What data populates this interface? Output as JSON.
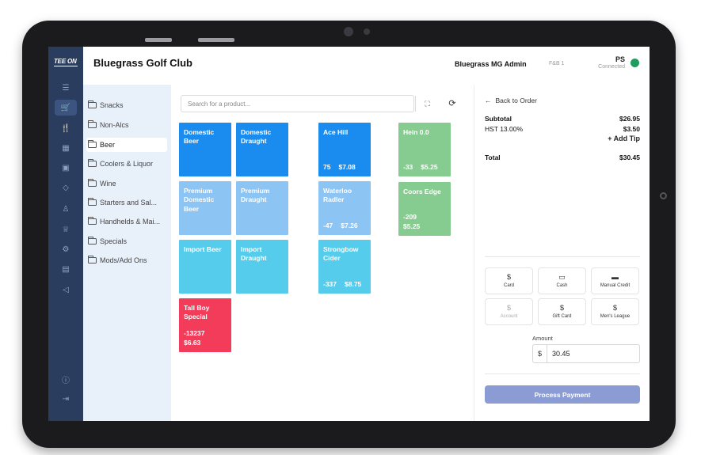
{
  "header": {
    "club_name": "Bluegrass Golf Club",
    "admin_name": "Bluegrass MG Admin",
    "station": "F&B 1",
    "user_initials": "PS",
    "connection_status": "Connected",
    "status_color": "#1f9c60"
  },
  "rail": {
    "logo": "TEE ON",
    "icons": [
      "menu-icon",
      "cart-icon",
      "restaurant-icon",
      "calendar-icon",
      "inventory-icon",
      "tag-icon",
      "user-icon",
      "trophy-icon",
      "settings-icon",
      "report-icon",
      "megaphone-icon",
      "info-icon",
      "logout-icon"
    ],
    "active": "cart-icon"
  },
  "categories": [
    {
      "label": "Snacks"
    },
    {
      "label": "Non-Alcs"
    },
    {
      "label": "Beer",
      "active": true
    },
    {
      "label": "Coolers & Liquor"
    },
    {
      "label": "Wine"
    },
    {
      "label": "Starters and Sal..."
    },
    {
      "label": "Handhelds & Mai..."
    },
    {
      "label": "Specials"
    },
    {
      "label": "Mods/Add Ons"
    }
  ],
  "search": {
    "placeholder": "Search for a product..."
  },
  "products": [
    {
      "name": "Domestic Beer",
      "qty": "",
      "price": "",
      "color": "#1a8cf0"
    },
    {
      "name": "Domestic Draught",
      "qty": "",
      "price": "",
      "color": "#1a8cf0"
    },
    {
      "name": "Premium Domestic Beer",
      "qty": "",
      "price": "",
      "color": "#8cc4f4"
    },
    {
      "name": "Premium Draught",
      "qty": "",
      "price": "",
      "color": "#8cc4f4"
    },
    {
      "name": "Import Beer",
      "qty": "",
      "price": "",
      "color": "#56ccec"
    },
    {
      "name": "Import Draught",
      "qty": "",
      "price": "",
      "color": "#56ccec"
    },
    {
      "name": "Tall Boy Special",
      "qty": "-13237",
      "price": "$6.63",
      "color": "#f23c5a"
    },
    {
      "name": "Ace Hill",
      "qty": "75",
      "price": "$7.08",
      "color": "#1a8cf0"
    },
    {
      "name": "Waterloo Radler",
      "qty": "-47",
      "price": "$7.26",
      "color": "#8cc4f4"
    },
    {
      "name": "Strongbow Cider",
      "qty": "-337",
      "price": "$8.75",
      "color": "#56ccec"
    },
    {
      "name": "Hein 0.0",
      "qty": "-33",
      "price": "$5.25",
      "color": "#86cc90"
    },
    {
      "name": "Coors Edge",
      "qty": "-209",
      "price": "$5.25",
      "color": "#86cc90"
    }
  ],
  "order": {
    "back_label": "Back to Order",
    "subtotal_label": "Subtotal",
    "subtotal": "$26.95",
    "tax_label": "HST 13.00%",
    "tax": "$3.50",
    "tip_label": "+ Add Tip",
    "total_label": "Total",
    "total": "$30.45"
  },
  "payment_methods": [
    {
      "label": "Card",
      "icon": "$",
      "enabled": true
    },
    {
      "label": "Cash",
      "icon": "cash-icon",
      "enabled": true
    },
    {
      "label": "Manual Credit",
      "icon": "card-icon",
      "enabled": true
    },
    {
      "label": "Account",
      "icon": "$",
      "enabled": false
    },
    {
      "label": "Gift Card",
      "icon": "$",
      "enabled": true
    },
    {
      "label": "Men's League",
      "icon": "$",
      "enabled": true
    }
  ],
  "amount": {
    "label": "Amount",
    "currency": "$",
    "value": "30.45"
  },
  "process_label": "Process Payment"
}
